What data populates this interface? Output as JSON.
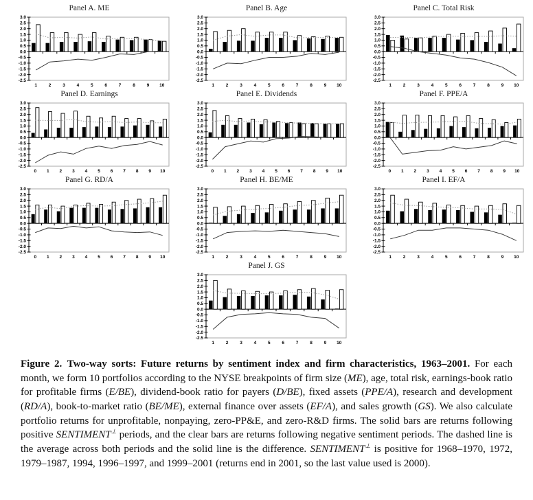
{
  "figure_caption": {
    "segments": [
      {
        "text": "Figure 2. Two-way sorts: Future returns by sentiment index and firm characteristics, 1963–2001. ",
        "style": "bold"
      },
      {
        "text": "For each month, we form 10 portfolios according to the NYSE breakpoints of firm size (",
        "style": "normal"
      },
      {
        "text": "ME",
        "style": "italic"
      },
      {
        "text": "), age, total risk, earnings-book ratio for profitable firms (",
        "style": "normal"
      },
      {
        "text": "E/BE",
        "style": "italic"
      },
      {
        "text": "), dividend-book ratio for payers (",
        "style": "normal"
      },
      {
        "text": "D/BE",
        "style": "italic"
      },
      {
        "text": "), fixed assets (",
        "style": "normal"
      },
      {
        "text": "PPE/A",
        "style": "italic"
      },
      {
        "text": "), research and development (",
        "style": "normal"
      },
      {
        "text": "RD/A",
        "style": "italic"
      },
      {
        "text": "), book-to-market ratio (",
        "style": "normal"
      },
      {
        "text": "BE/ME",
        "style": "italic"
      },
      {
        "text": "), external finance over assets (",
        "style": "normal"
      },
      {
        "text": "EF/A",
        "style": "italic"
      },
      {
        "text": "), and sales growth (",
        "style": "normal"
      },
      {
        "text": "GS",
        "style": "italic"
      },
      {
        "text": "). We also calculate portfolio returns for unprofitable, nonpaying, zero-PP&E, and zero-R&D firms. The solid bars are returns following positive ",
        "style": "normal"
      },
      {
        "text": "SENTIMENT",
        "style": "italic"
      },
      {
        "text": "⊥",
        "style": "sup"
      },
      {
        "text": " periods, and the clear bars are returns following negative sentiment periods. The dashed line is the average across both periods and the solid line is the difference. ",
        "style": "normal"
      },
      {
        "text": "SENTIMENT",
        "style": "italic"
      },
      {
        "text": "⊥",
        "style": "sup"
      },
      {
        "text": " is positive for 1968–1970, 1972, 1979–1987, 1994, 1996–1997, and 1999–2001 (returns end in 2001, so the last value used is 2000).",
        "style": "normal"
      }
    ]
  },
  "chart_data": {
    "type": "bar",
    "subtype": "grouped bars with average (dashed) and difference (solid) lines",
    "ylim": [
      -2.5,
      3.0
    ],
    "y_ticks": [
      3.0,
      2.5,
      2.0,
      1.5,
      1.0,
      0.5,
      0.0,
      -0.5,
      -1.0,
      -1.5,
      -2.0,
      -2.5
    ],
    "grid": "off",
    "legend": {
      "solid_bars": "returns following positive sentiment periods",
      "clear_bars": "returns following negative sentiment periods",
      "dashed_line": "average across both periods",
      "solid_line": "difference"
    },
    "colors": {
      "solid_bar": "#000000",
      "clear_bar": "#ffffff",
      "bar_border": "#000000",
      "avg_line": "#9a9a9a",
      "diff_line": "#3a3a3a",
      "frame": "#aaaaaa",
      "axis": "#000000"
    },
    "layout_rows": [
      [
        "A",
        "B",
        "C"
      ],
      [
        "D",
        "E",
        "F"
      ],
      [
        "G",
        "H",
        "I"
      ],
      [
        "J"
      ]
    ],
    "panels": [
      {
        "id": "A",
        "title": "Panel A. ME",
        "categories": [
          1,
          2,
          3,
          4,
          5,
          6,
          7,
          8,
          9,
          10
        ],
        "solid": [
          0.75,
          0.75,
          0.85,
          0.85,
          0.9,
          0.85,
          1.05,
          1.0,
          1.05,
          0.95
        ],
        "clear": [
          2.35,
          1.65,
          1.65,
          1.5,
          1.65,
          1.35,
          1.25,
          1.25,
          1.05,
          0.9
        ],
        "avg": [
          1.55,
          1.2,
          1.25,
          1.18,
          1.28,
          1.1,
          1.15,
          1.13,
          1.05,
          0.93
        ],
        "diff": [
          -1.6,
          -0.9,
          -0.8,
          -0.65,
          -0.75,
          -0.5,
          -0.2,
          -0.25,
          0.0,
          0.05
        ]
      },
      {
        "id": "B",
        "title": "Panel B. Age",
        "categories": [
          1,
          2,
          3,
          4,
          5,
          6,
          7,
          8,
          9,
          10
        ],
        "solid": [
          0.25,
          0.85,
          0.95,
          0.95,
          1.2,
          1.2,
          1.0,
          1.15,
          1.1,
          1.2
        ],
        "clear": [
          1.75,
          1.85,
          2.0,
          1.7,
          1.7,
          1.7,
          1.4,
          1.3,
          1.35,
          1.25
        ],
        "avg": [
          1.0,
          1.35,
          1.48,
          1.33,
          1.45,
          1.45,
          1.2,
          1.23,
          1.23,
          1.23
        ],
        "diff": [
          -1.5,
          -1.0,
          -1.05,
          -0.75,
          -0.5,
          -0.5,
          -0.4,
          -0.15,
          -0.25,
          -0.05
        ]
      },
      {
        "id": "C",
        "title": "Panel C. Total Risk",
        "categories": [
          1,
          2,
          3,
          4,
          5,
          6,
          7,
          8,
          9,
          10
        ],
        "solid": [
          1.45,
          1.4,
          1.2,
          1.2,
          1.2,
          1.05,
          1.0,
          0.85,
          0.7,
          0.3
        ],
        "clear": [
          1.0,
          1.1,
          1.2,
          1.35,
          1.5,
          1.6,
          1.65,
          1.8,
          2.05,
          2.4
        ],
        "avg": [
          1.23,
          1.25,
          1.2,
          1.28,
          1.35,
          1.33,
          1.33,
          1.33,
          1.38,
          1.35
        ],
        "diff": [
          0.45,
          0.3,
          0.0,
          -0.15,
          -0.3,
          -0.55,
          -0.65,
          -0.95,
          -1.35,
          -2.1
        ]
      },
      {
        "id": "D",
        "title": "Panel D. Earnings",
        "categories": [
          0,
          1,
          2,
          3,
          4,
          5,
          6,
          7,
          8,
          9,
          10
        ],
        "solid": [
          0.4,
          0.7,
          0.85,
          0.85,
          0.9,
          0.95,
          0.9,
          0.95,
          1.05,
          1.1,
          0.95
        ],
        "clear": [
          2.6,
          2.25,
          2.1,
          2.3,
          1.85,
          1.7,
          1.85,
          1.65,
          1.65,
          1.45,
          1.6
        ],
        "avg": [
          1.5,
          1.48,
          1.48,
          1.58,
          1.38,
          1.33,
          1.38,
          1.3,
          1.35,
          1.28,
          1.28
        ],
        "diff": [
          -2.2,
          -1.55,
          -1.25,
          -1.45,
          -0.95,
          -0.75,
          -0.95,
          -0.7,
          -0.6,
          -0.35,
          -0.65
        ]
      },
      {
        "id": "E",
        "title": "Panel E. Dividends",
        "categories": [
          0,
          1,
          2,
          3,
          4,
          5,
          6,
          7,
          8,
          9,
          10
        ],
        "solid": [
          0.45,
          1.1,
          1.1,
          1.3,
          1.15,
          1.3,
          1.25,
          1.3,
          1.25,
          1.2,
          1.2
        ],
        "clear": [
          2.35,
          1.9,
          1.65,
          1.6,
          1.55,
          1.4,
          1.3,
          1.2,
          1.2,
          1.2,
          1.2
        ],
        "avg": [
          1.4,
          1.5,
          1.38,
          1.45,
          1.35,
          1.35,
          1.28,
          1.25,
          1.23,
          1.2,
          1.2
        ],
        "diff": [
          -1.9,
          -0.8,
          -0.55,
          -0.3,
          -0.4,
          -0.1,
          -0.05,
          0.1,
          0.05,
          0.0,
          0.0
        ]
      },
      {
        "id": "F",
        "title": "Panel F. PPE/A",
        "categories": [
          0,
          1,
          2,
          3,
          4,
          5,
          6,
          7,
          8,
          9,
          10
        ],
        "solid": [
          1.35,
          0.5,
          0.65,
          0.75,
          0.8,
          1.0,
          0.9,
          0.8,
          0.85,
          1.0,
          1.05
        ],
        "clear": [
          1.3,
          1.95,
          1.95,
          1.9,
          1.9,
          1.8,
          1.9,
          1.65,
          1.55,
          1.3,
          1.6
        ],
        "avg": [
          1.33,
          1.23,
          1.3,
          1.33,
          1.35,
          1.4,
          1.4,
          1.23,
          1.2,
          1.15,
          1.33
        ],
        "diff": [
          0.05,
          -1.45,
          -1.3,
          -1.15,
          -1.1,
          -0.8,
          -1.0,
          -0.85,
          -0.7,
          -0.3,
          -0.55
        ]
      },
      {
        "id": "G",
        "title": "Panel G. RD/A",
        "categories": [
          0,
          1,
          2,
          3,
          4,
          5,
          6,
          7,
          8,
          9,
          10
        ],
        "solid": [
          0.8,
          1.2,
          1.05,
          1.35,
          1.35,
          1.35,
          1.2,
          1.25,
          1.3,
          1.4,
          1.4
        ],
        "clear": [
          1.6,
          1.6,
          1.5,
          1.6,
          1.75,
          1.65,
          1.85,
          2.0,
          2.1,
          2.15,
          2.45
        ],
        "avg": [
          1.2,
          1.4,
          1.28,
          1.48,
          1.55,
          1.5,
          1.53,
          1.63,
          1.7,
          1.78,
          1.93
        ],
        "diff": [
          -0.8,
          -0.4,
          -0.45,
          -0.25,
          -0.4,
          -0.3,
          -0.65,
          -0.75,
          -0.8,
          -0.75,
          -1.05
        ]
      },
      {
        "id": "H",
        "title": "Panel H. BE/ME",
        "categories": [
          1,
          2,
          3,
          4,
          5,
          6,
          7,
          8,
          9,
          10
        ],
        "solid": [
          0.05,
          0.65,
          0.8,
          0.9,
          0.95,
          1.1,
          1.2,
          1.2,
          1.3,
          1.3
        ],
        "clear": [
          1.4,
          1.45,
          1.5,
          1.55,
          1.65,
          1.7,
          1.9,
          2.0,
          2.2,
          2.45
        ],
        "avg": [
          0.73,
          1.05,
          1.15,
          1.23,
          1.3,
          1.4,
          1.55,
          1.6,
          1.75,
          1.88
        ],
        "diff": [
          -1.35,
          -0.8,
          -0.7,
          -0.65,
          -0.7,
          -0.6,
          -0.7,
          -0.8,
          -0.9,
          -1.15
        ]
      },
      {
        "id": "I",
        "title": "Panel I. EF/A",
        "categories": [
          1,
          2,
          3,
          4,
          5,
          6,
          7,
          8,
          9,
          10
        ],
        "solid": [
          1.1,
          1.05,
          1.25,
          1.15,
          1.2,
          1.15,
          1.0,
          0.95,
          0.75,
          0.05
        ],
        "clear": [
          2.45,
          2.1,
          1.85,
          1.75,
          1.6,
          1.55,
          1.5,
          1.55,
          1.7,
          1.55
        ],
        "avg": [
          1.78,
          1.58,
          1.55,
          1.45,
          1.4,
          1.35,
          1.25,
          1.25,
          1.23,
          0.8
        ],
        "diff": [
          -1.35,
          -1.05,
          -0.6,
          -0.6,
          -0.4,
          -0.4,
          -0.5,
          -0.6,
          -0.95,
          -1.5
        ]
      },
      {
        "id": "J",
        "title": "Panel J. GS",
        "categories": [
          1,
          2,
          3,
          4,
          5,
          6,
          7,
          8,
          9,
          10
        ],
        "solid": [
          0.75,
          1.05,
          1.15,
          1.15,
          1.2,
          1.2,
          1.25,
          1.1,
          0.85,
          0.05
        ],
        "clear": [
          2.5,
          1.75,
          1.6,
          1.55,
          1.5,
          1.6,
          1.7,
          1.8,
          1.65,
          1.7
        ],
        "avg": [
          1.63,
          1.4,
          1.38,
          1.35,
          1.35,
          1.4,
          1.48,
          1.45,
          1.25,
          0.88
        ],
        "diff": [
          -1.75,
          -0.7,
          -0.45,
          -0.4,
          -0.3,
          -0.4,
          -0.45,
          -0.7,
          -0.8,
          -1.65
        ]
      }
    ]
  }
}
